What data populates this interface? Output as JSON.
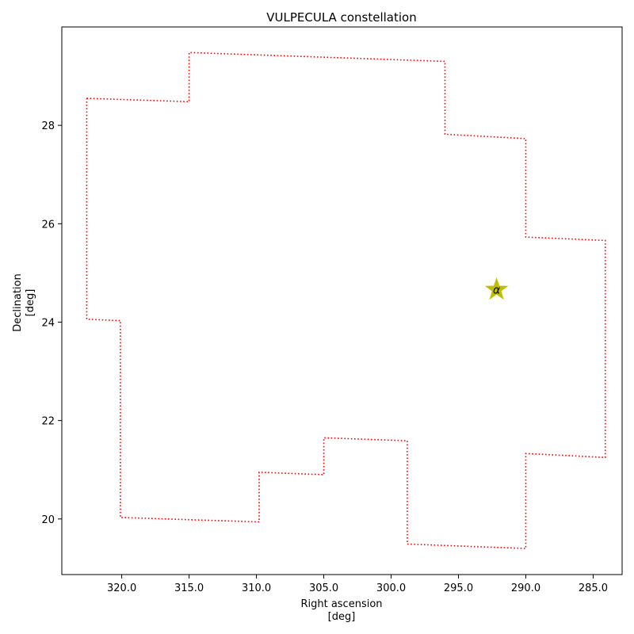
{
  "chart_data": {
    "type": "line",
    "title": "VULPECULA constellation",
    "xlabel": [
      "Right ascension",
      "[deg]"
    ],
    "ylabel": [
      "Declination",
      "[deg]"
    ],
    "x_inverted": true,
    "xlim": [
      324.45,
      282.85
    ],
    "ylim": [
      18.87,
      30.0
    ],
    "x_ticks": [
      320,
      315,
      310,
      305,
      300,
      295,
      290,
      285
    ],
    "x_tick_labels": [
      "320.0",
      "315.0",
      "310.0",
      "305.0",
      "300.0",
      "295.0",
      "290.0",
      "285.0"
    ],
    "y_ticks": [
      20,
      22,
      24,
      26,
      28
    ],
    "y_tick_labels": [
      "20",
      "22",
      "24",
      "26",
      "28"
    ],
    "grid": false,
    "series": [
      {
        "style": "dotted",
        "color": "#ff0000",
        "points": [
          [
            322.6,
            28.55
          ],
          [
            315.0,
            28.48
          ],
          [
            315.0,
            29.48
          ],
          [
            296.0,
            29.3
          ],
          [
            296.0,
            27.82
          ],
          [
            290.0,
            27.73
          ],
          [
            290.0,
            25.73
          ],
          [
            284.1,
            25.66
          ],
          [
            284.1,
            21.25
          ],
          [
            290.0,
            21.33
          ],
          [
            290.0,
            19.4
          ],
          [
            298.8,
            19.49
          ],
          [
            298.8,
            21.59
          ],
          [
            305.0,
            21.65
          ],
          [
            305.0,
            20.9
          ],
          [
            309.8,
            20.95
          ],
          [
            309.8,
            19.94
          ],
          [
            320.1,
            20.03
          ],
          [
            320.1,
            24.03
          ],
          [
            322.6,
            24.06
          ],
          [
            322.6,
            28.55
          ]
        ]
      }
    ],
    "markers": [
      {
        "label": "α",
        "x": 292.17,
        "y": 24.66,
        "shape": "star",
        "color": "#bfbf00"
      }
    ]
  }
}
